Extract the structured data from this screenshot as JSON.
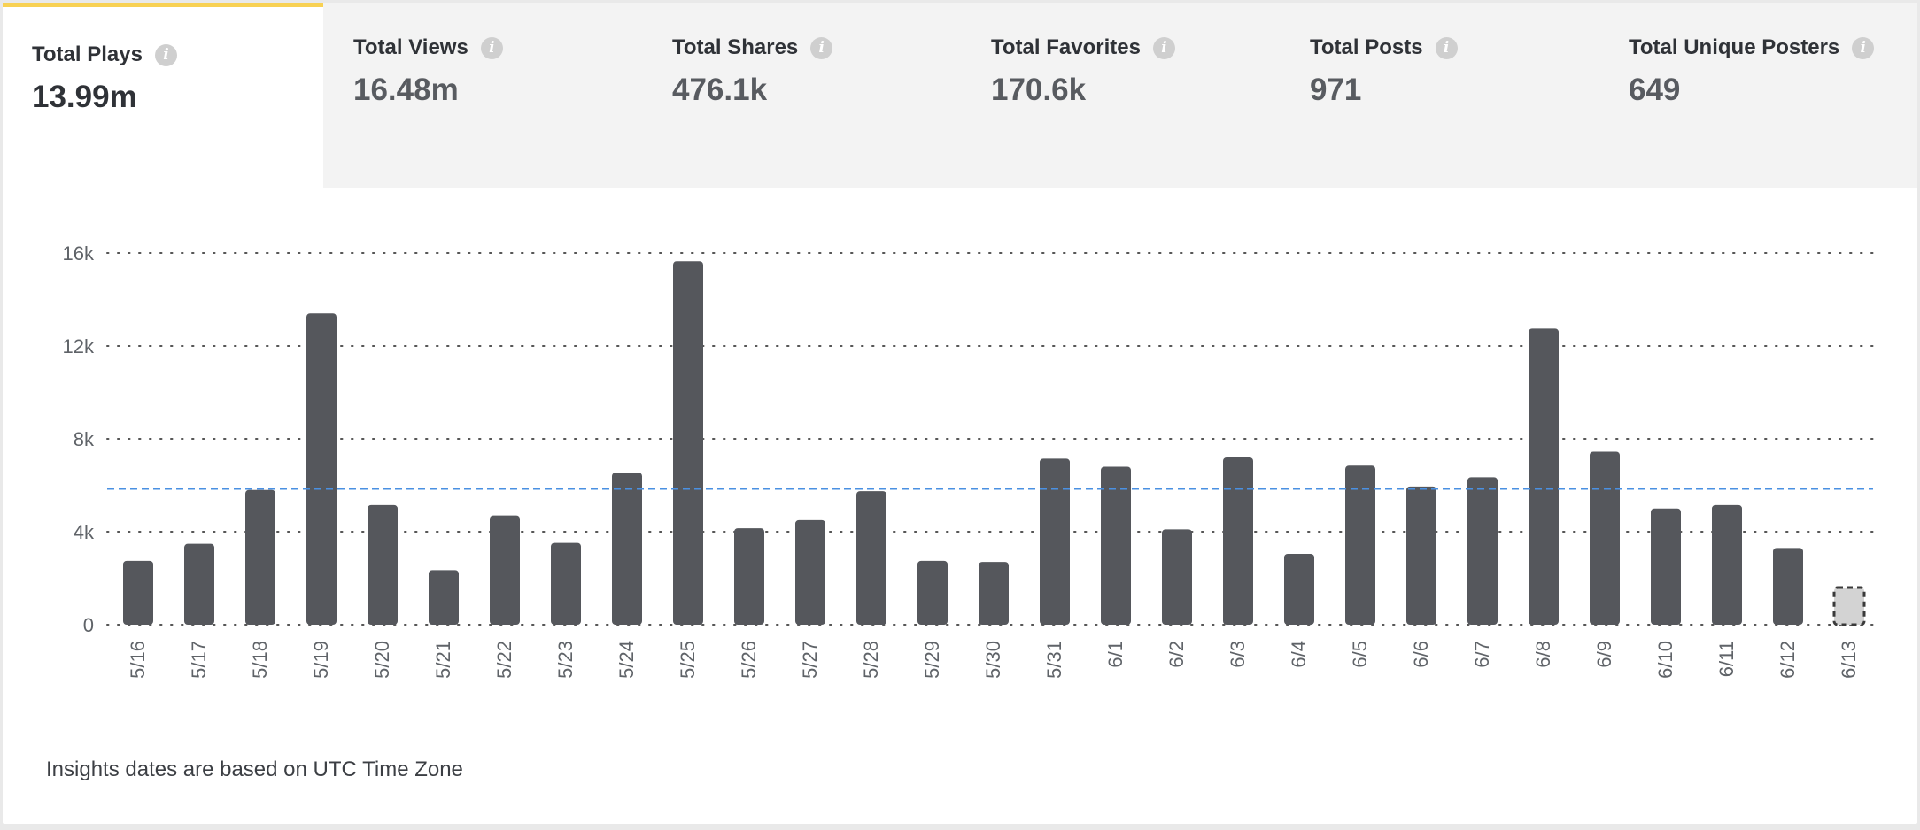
{
  "tabs": [
    {
      "label": "Total Plays",
      "value": "13.99m",
      "active": true
    },
    {
      "label": "Total Views",
      "value": "16.48m",
      "active": false
    },
    {
      "label": "Total Shares",
      "value": "476.1k",
      "active": false
    },
    {
      "label": "Total Favorites",
      "value": "170.6k",
      "active": false
    },
    {
      "label": "Total Posts",
      "value": "971",
      "active": false
    },
    {
      "label": "Total Unique Posters",
      "value": "649",
      "active": false
    }
  ],
  "info_icon_glyph": "i",
  "colors": {
    "accent": "#f8d153",
    "bar": "#55575c",
    "bar_pending": "#d3d3d3",
    "average_line": "#4a90e2"
  },
  "footnote": "Insights dates are based on UTC Time Zone",
  "chart_data": {
    "type": "bar",
    "title": "Total Plays",
    "xlabel": "",
    "ylabel": "",
    "ylim": [
      0,
      16000
    ],
    "yticks": [
      0,
      4000,
      8000,
      12000,
      16000
    ],
    "ytick_labels": [
      "0",
      "4k",
      "8k",
      "12k",
      "16k"
    ],
    "grid": true,
    "average": 5850,
    "categories": [
      "5/16",
      "5/17",
      "5/18",
      "5/19",
      "5/20",
      "5/21",
      "5/22",
      "5/23",
      "5/24",
      "5/25",
      "5/26",
      "5/27",
      "5/28",
      "5/29",
      "5/30",
      "5/31",
      "6/1",
      "6/2",
      "6/3",
      "6/4",
      "6/5",
      "6/6",
      "6/7",
      "6/8",
      "6/9",
      "6/10",
      "6/11",
      "6/12",
      "6/13"
    ],
    "values": [
      2750,
      3480,
      5800,
      13400,
      5150,
      2350,
      4700,
      3520,
      6550,
      15650,
      4150,
      4500,
      5750,
      2750,
      2700,
      7150,
      6800,
      4100,
      7200,
      3050,
      6850,
      5950,
      6350,
      12750,
      7450,
      5000,
      5150,
      3300,
      1600
    ],
    "pending": [
      false,
      false,
      false,
      false,
      false,
      false,
      false,
      false,
      false,
      false,
      false,
      false,
      false,
      false,
      false,
      false,
      false,
      false,
      false,
      false,
      false,
      false,
      false,
      false,
      false,
      false,
      false,
      false,
      true
    ]
  }
}
